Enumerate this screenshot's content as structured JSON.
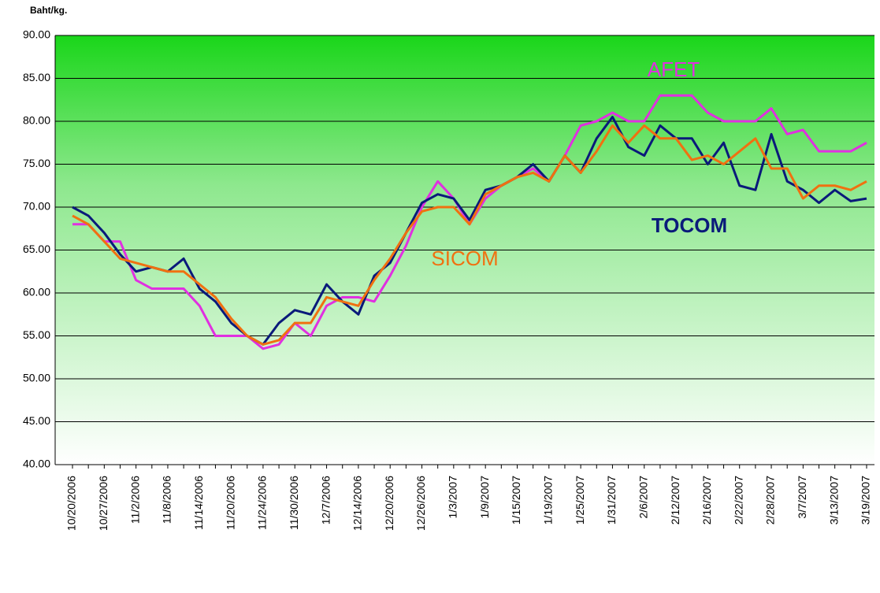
{
  "chart_data": {
    "type": "line",
    "y_label": "Baht/kg.",
    "categories": [
      "10/20/2006",
      null,
      "10/27/2006",
      null,
      "11/2/2006",
      null,
      "11/8/2006",
      null,
      "11/14/2006",
      null,
      "11/20/2006",
      null,
      "11/24/2006",
      null,
      "11/30/2006",
      null,
      "12/7/2006",
      null,
      "12/14/2006",
      null,
      "12/20/2006",
      null,
      "12/26/2006",
      null,
      "1/3/2007",
      null,
      "1/9/2007",
      null,
      "1/15/2007",
      null,
      "1/19/2007",
      null,
      "1/25/2007",
      null,
      "1/31/2007",
      null,
      "2/6/2007",
      null,
      "2/12/2007",
      null,
      "2/16/2007",
      null,
      "2/22/2007",
      null,
      "2/28/2007",
      null,
      "3/7/2007",
      null,
      "3/13/2007",
      null,
      "3/19/2007"
    ],
    "series": [
      {
        "name": "AFET",
        "color": "#e030e0",
        "values": [
          68,
          68,
          66,
          66,
          61.5,
          60.5,
          60.5,
          60.5,
          58.5,
          55,
          55,
          55,
          53.5,
          54,
          56.5,
          55,
          58.5,
          59.5,
          59.5,
          59,
          62,
          65.5,
          70,
          73,
          71,
          68,
          71,
          72.5,
          73.5,
          74.5,
          73,
          76,
          79.5,
          80,
          81,
          80,
          80,
          83,
          83,
          83,
          81,
          80,
          80,
          80,
          81.5,
          78.5,
          79,
          76.5,
          76.5,
          76.5,
          77.5
        ]
      },
      {
        "name": "TOCOM",
        "color": "#0a1a7a",
        "values": [
          70,
          69,
          67,
          64.5,
          62.5,
          63,
          62.5,
          64,
          60.5,
          59,
          56.5,
          55,
          54,
          56.5,
          58,
          57.5,
          61,
          59,
          57.5,
          62,
          63.5,
          67,
          70.5,
          71.5,
          71,
          68.5,
          72,
          72.5,
          73.5,
          75,
          73,
          76,
          74,
          78,
          80.5,
          77,
          76,
          79.5,
          78,
          78,
          75,
          77.5,
          72.5,
          72,
          78.5,
          73,
          72,
          70.5,
          72,
          70.7,
          71
        ]
      },
      {
        "name": "SICOM",
        "color": "#f07010",
        "values": [
          69,
          68,
          66,
          64,
          63.5,
          63,
          62.5,
          62.5,
          61,
          59.5,
          57,
          55,
          54,
          54.5,
          56.5,
          56.5,
          59.5,
          59,
          58.5,
          61.5,
          64,
          67,
          69.5,
          70,
          70,
          68,
          71.5,
          72.5,
          73.5,
          74,
          73,
          76,
          74,
          76.5,
          79.5,
          77.5,
          79.5,
          78,
          78,
          75.5,
          76,
          75,
          76.5,
          78,
          74.5,
          74.5,
          71,
          72.5,
          72.5,
          72,
          73
        ]
      }
    ],
    "ylim": [
      40,
      90
    ],
    "yticks": [
      {
        "value": 40,
        "label": "40.00"
      },
      {
        "value": 45,
        "label": "45.00"
      },
      {
        "value": 50,
        "label": "50.00"
      },
      {
        "value": 55,
        "label": "55.00"
      },
      {
        "value": 60,
        "label": "60.00"
      },
      {
        "value": 65,
        "label": "65.00"
      },
      {
        "value": 70,
        "label": "70.00"
      },
      {
        "value": 75,
        "label": "75.00"
      },
      {
        "value": 80,
        "label": "80.00"
      },
      {
        "value": 85,
        "label": "85.00"
      },
      {
        "value": 90,
        "label": "90.00"
      }
    ],
    "grid": true
  }
}
